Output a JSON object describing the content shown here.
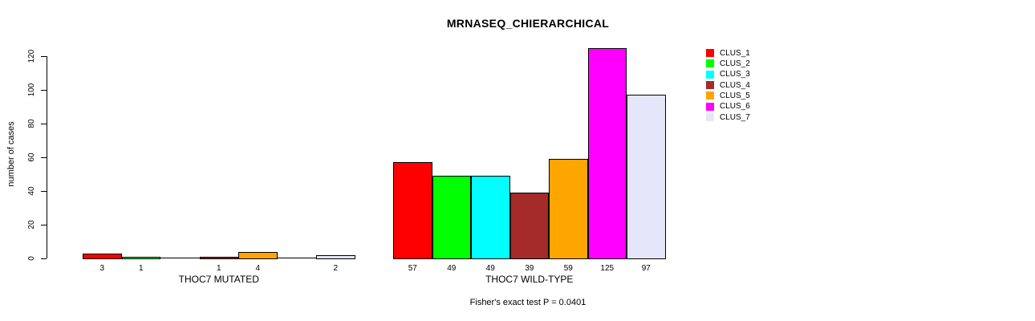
{
  "title": "MRNASEQ_CHIERARCHICAL",
  "footer": "Fisher's exact test P = 0.0401",
  "yaxis": {
    "label": "number of cases"
  },
  "chart_data": {
    "type": "bar",
    "title": "MRNASEQ_CHIERARCHICAL",
    "xlabel": "",
    "ylabel": "number of cases",
    "ylim": [
      0,
      126
    ],
    "yticks": [
      0,
      20,
      40,
      60,
      80,
      100,
      120
    ],
    "grid": false,
    "legend_position": "right-outside",
    "series_names": [
      "CLUS_1",
      "CLUS_2",
      "CLUS_3",
      "CLUS_4",
      "CLUS_5",
      "CLUS_6",
      "CLUS_7"
    ],
    "colors": [
      "#ff0000",
      "#00ff00",
      "#00ffff",
      "#a52a2a",
      "#ffa500",
      "#ff00ff",
      "#e6e6fa"
    ],
    "groups": [
      {
        "label": "THOC7 MUTATED",
        "values": [
          3,
          1,
          0,
          1,
          4,
          0,
          2
        ],
        "bar_labels": [
          "3",
          "1",
          "",
          "1",
          "4",
          "",
          "2"
        ]
      },
      {
        "label": "THOC7 WILD-TYPE",
        "values": [
          57,
          49,
          49,
          39,
          59,
          125,
          97
        ],
        "bar_labels": [
          "57",
          "49",
          "49",
          "39",
          "59",
          "125",
          "97"
        ]
      }
    ],
    "annotation": "Fisher's exact test P = 0.0401"
  }
}
